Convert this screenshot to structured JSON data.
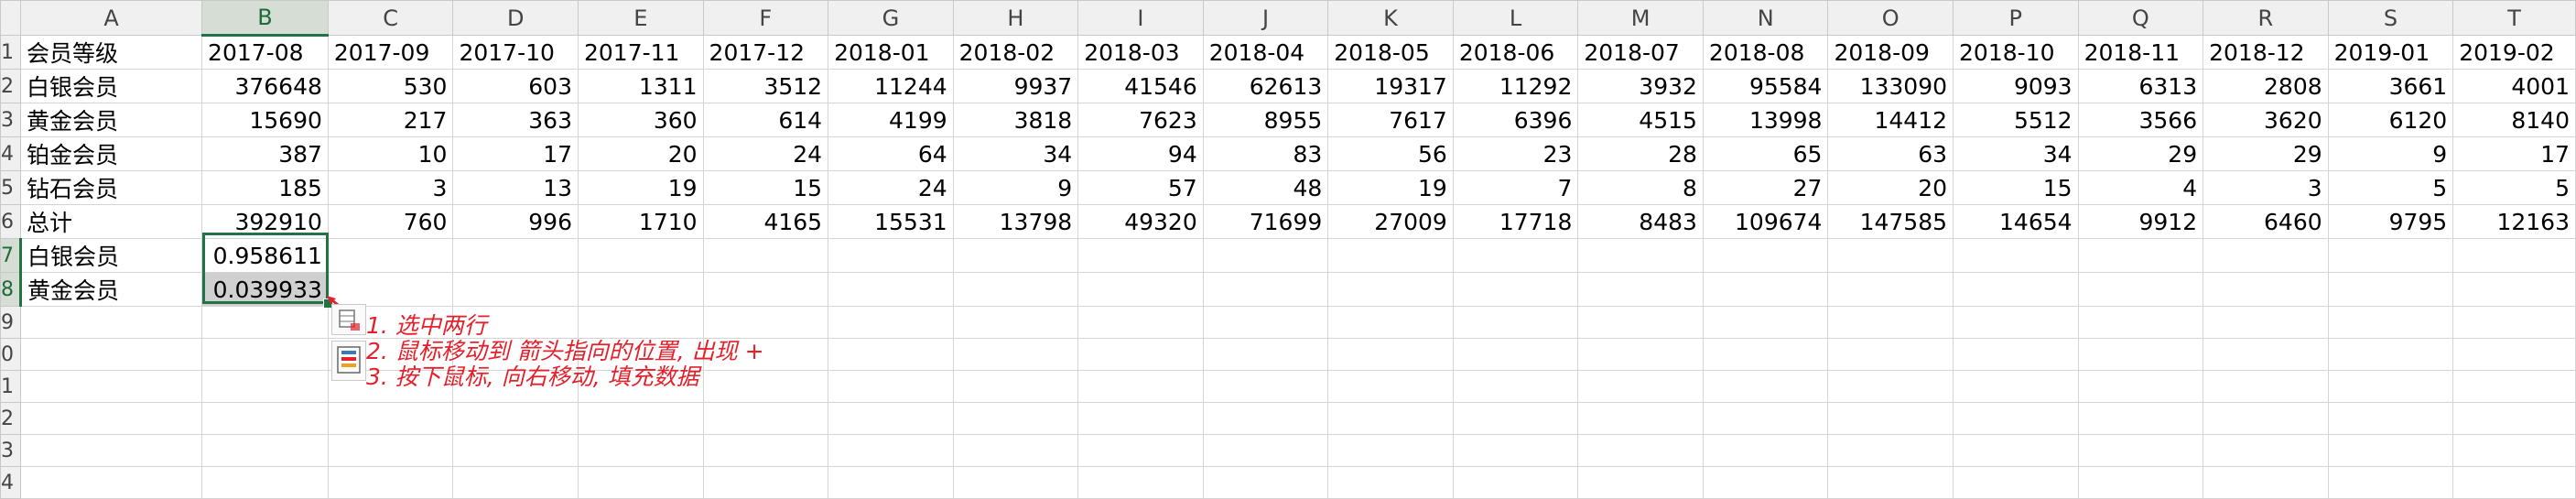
{
  "columns": [
    "A",
    "B",
    "C",
    "D",
    "E",
    "F",
    "G",
    "H",
    "I",
    "J",
    "K",
    "L",
    "M",
    "N",
    "O",
    "P",
    "Q",
    "R",
    "S",
    "T"
  ],
  "row_headers": [
    "1",
    "2",
    "3",
    "4",
    "5",
    "6",
    "7",
    "8",
    "9",
    "0",
    "1",
    "2",
    "3",
    "4"
  ],
  "header_row": [
    "会员等级",
    "2017-08",
    "2017-09",
    "2017-10",
    "2017-11",
    "2017-12",
    "2018-01",
    "2018-02",
    "2018-03",
    "2018-04",
    "2018-05",
    "2018-06",
    "2018-07",
    "2018-08",
    "2018-09",
    "2018-10",
    "2018-11",
    "2018-12",
    "2019-01",
    "2019-02"
  ],
  "data_rows": [
    {
      "label": "白银会员",
      "values": [
        "376648",
        "530",
        "603",
        "1311",
        "3512",
        "11244",
        "9937",
        "41546",
        "62613",
        "19317",
        "11292",
        "3932",
        "95584",
        "133090",
        "9093",
        "6313",
        "2808",
        "3661",
        "4001"
      ]
    },
    {
      "label": "黄金会员",
      "values": [
        "15690",
        "217",
        "363",
        "360",
        "614",
        "4199",
        "3818",
        "7623",
        "8955",
        "7617",
        "6396",
        "4515",
        "13998",
        "14412",
        "5512",
        "3566",
        "3620",
        "6120",
        "8140"
      ]
    },
    {
      "label": "铂金会员",
      "values": [
        "387",
        "10",
        "17",
        "20",
        "24",
        "64",
        "34",
        "94",
        "83",
        "56",
        "23",
        "28",
        "65",
        "63",
        "34",
        "29",
        "29",
        "9",
        "17"
      ]
    },
    {
      "label": "钻石会员",
      "values": [
        "185",
        "3",
        "13",
        "19",
        "15",
        "24",
        "9",
        "57",
        "48",
        "19",
        "7",
        "8",
        "27",
        "20",
        "15",
        "4",
        "3",
        "5",
        "5"
      ]
    },
    {
      "label": "总计",
      "values": [
        "392910",
        "760",
        "996",
        "1710",
        "4165",
        "15531",
        "13798",
        "49320",
        "71699",
        "27009",
        "17718",
        "8483",
        "109674",
        "147585",
        "14654",
        "9912",
        "6460",
        "9795",
        "12163"
      ]
    }
  ],
  "ratio_rows": [
    {
      "label": "白银会员",
      "value": "0.958611"
    },
    {
      "label": "黄金会员",
      "value": "0.039933"
    }
  ],
  "annotations": [
    "1. 选中两行",
    "2. 鼠标移动到 箭头指向的位置, 出现 +",
    "3. 按下鼠标, 向右移动, 填充数据"
  ],
  "colors": {
    "selection": "#217346",
    "annotation": "#e5202a"
  },
  "icons": [
    "quick-analysis-icon",
    "format-icon",
    "red-arrow-icon"
  ]
}
